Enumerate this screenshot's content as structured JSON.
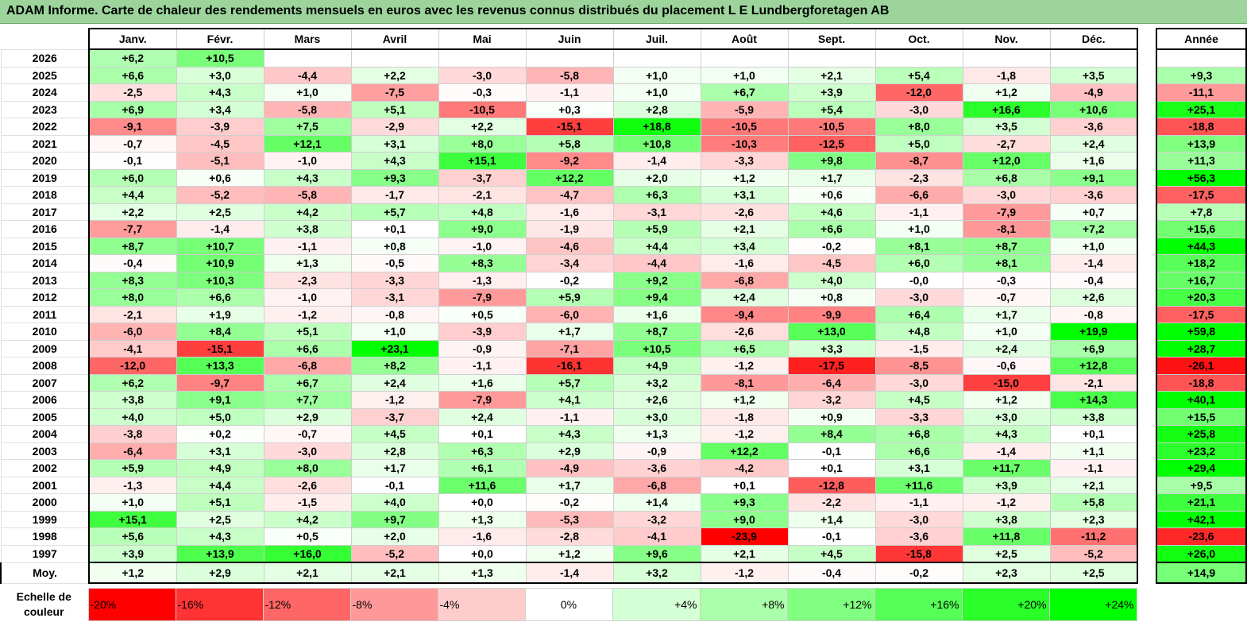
{
  "title": "ADAM Informe. Carte de chaleur des rendements mensuels en euros avec les revenus connus distribués du placement L E Lundbergforetagen AB",
  "months": [
    "Janv.",
    "Févr.",
    "Mars",
    "Avril",
    "Mai",
    "Juin",
    "Juil.",
    "Août",
    "Sept.",
    "Oct.",
    "Nov.",
    "Déc."
  ],
  "year_header": "Année",
  "avg_label": "Moy.",
  "rows": [
    {
      "year": "2026",
      "months": [
        "+6,2",
        "+10,5",
        "",
        "",
        "",
        "",
        "",
        "",
        "",
        "",
        "",
        ""
      ],
      "annual": ""
    },
    {
      "year": "2025",
      "months": [
        "+6,6",
        "+3,0",
        "-4,4",
        "+2,2",
        "-3,0",
        "-5,8",
        "+1,0",
        "+1,0",
        "+2,1",
        "+5,4",
        "-1,8",
        "+3,5"
      ],
      "annual": "+9,3"
    },
    {
      "year": "2024",
      "months": [
        "-2,5",
        "+4,3",
        "+1,0",
        "-7,5",
        "-0,3",
        "-1,1",
        "+1,0",
        "+6,7",
        "+3,9",
        "-12,0",
        "+1,2",
        "-4,9"
      ],
      "annual": "-11,1"
    },
    {
      "year": "2023",
      "months": [
        "+6,9",
        "+3,4",
        "-5,8",
        "+5,1",
        "-10,5",
        "+0,3",
        "+2,8",
        "-5,9",
        "+5,4",
        "-3,0",
        "+16,6",
        "+10,6"
      ],
      "annual": "+25,1"
    },
    {
      "year": "2022",
      "months": [
        "-9,1",
        "-3,9",
        "+7,5",
        "-2,9",
        "+2,2",
        "-15,1",
        "+18,8",
        "-10,5",
        "-10,5",
        "+8,0",
        "+3,5",
        "-3,6"
      ],
      "annual": "-18,8"
    },
    {
      "year": "2021",
      "months": [
        "-0,7",
        "-4,5",
        "+12,1",
        "+3,1",
        "+8,0",
        "+5,8",
        "+10,8",
        "-10,3",
        "-12,5",
        "+5,0",
        "-2,7",
        "+2,4"
      ],
      "annual": "+13,9"
    },
    {
      "year": "2020",
      "months": [
        "-0,1",
        "-5,1",
        "-1,0",
        "+4,3",
        "+15,1",
        "-9,2",
        "-1,4",
        "-3,3",
        "+9,8",
        "-8,7",
        "+12,0",
        "+1,6"
      ],
      "annual": "+11,3"
    },
    {
      "year": "2019",
      "months": [
        "+6,0",
        "+0,6",
        "+4,3",
        "+9,3",
        "-3,7",
        "+12,2",
        "+2,0",
        "+1,2",
        "+1,7",
        "-2,3",
        "+6,8",
        "+9,1"
      ],
      "annual": "+56,3"
    },
    {
      "year": "2018",
      "months": [
        "+4,4",
        "-5,2",
        "-5,8",
        "-1,7",
        "-2,1",
        "-4,7",
        "+6,3",
        "+3,1",
        "+0,6",
        "-6,6",
        "-3,0",
        "-3,6"
      ],
      "annual": "-17,5"
    },
    {
      "year": "2017",
      "months": [
        "+2,2",
        "+2,5",
        "+4,2",
        "+5,7",
        "+4,8",
        "-1,6",
        "-3,1",
        "-2,6",
        "+4,6",
        "-1,1",
        "-7,9",
        "+0,7"
      ],
      "annual": "+7,8"
    },
    {
      "year": "2016",
      "months": [
        "-7,7",
        "-1,4",
        "+3,8",
        "+0,1",
        "+9,0",
        "-1,9",
        "+5,9",
        "+2,1",
        "+6,6",
        "+1,0",
        "-8,1",
        "+7,2"
      ],
      "annual": "+15,6"
    },
    {
      "year": "2015",
      "months": [
        "+8,7",
        "+10,7",
        "-1,1",
        "+0,8",
        "-1,0",
        "-4,6",
        "+4,4",
        "+3,4",
        "-0,2",
        "+8,1",
        "+8,7",
        "+1,0"
      ],
      "annual": "+44,3"
    },
    {
      "year": "2014",
      "months": [
        "-0,4",
        "+10,9",
        "+1,3",
        "-0,5",
        "+8,3",
        "-3,4",
        "-4,4",
        "-1,6",
        "-4,5",
        "+6,0",
        "+8,1",
        "-1,4"
      ],
      "annual": "+18,2"
    },
    {
      "year": "2013",
      "months": [
        "+8,3",
        "+10,3",
        "-2,3",
        "-3,3",
        "-1,3",
        "-0,2",
        "+9,2",
        "-6,8",
        "+4,0",
        "-0,0",
        "-0,3",
        "-0,4"
      ],
      "annual": "+16,7"
    },
    {
      "year": "2012",
      "months": [
        "+8,0",
        "+6,6",
        "-1,0",
        "-3,1",
        "-7,9",
        "+5,9",
        "+9,4",
        "+2,4",
        "+0,8",
        "-3,0",
        "-0,7",
        "+2,6"
      ],
      "annual": "+20,3"
    },
    {
      "year": "2011",
      "months": [
        "-2,1",
        "+1,9",
        "-1,2",
        "-0,8",
        "+0,5",
        "-6,0",
        "+1,6",
        "-9,4",
        "-9,9",
        "+6,4",
        "+1,7",
        "-0,8"
      ],
      "annual": "-17,5"
    },
    {
      "year": "2010",
      "months": [
        "-6,0",
        "+8,4",
        "+5,1",
        "+1,0",
        "-3,9",
        "+1,7",
        "+8,7",
        "-2,6",
        "+13,0",
        "+4,8",
        "+1,0",
        "+19,9"
      ],
      "annual": "+59,8"
    },
    {
      "year": "2009",
      "months": [
        "-4,1",
        "-15,1",
        "+6,6",
        "+23,1",
        "-0,9",
        "-7,1",
        "+10,5",
        "+6,5",
        "+3,3",
        "-1,5",
        "+2,4",
        "+6,9"
      ],
      "annual": "+28,7"
    },
    {
      "year": "2008",
      "months": [
        "-12,0",
        "+13,3",
        "-6,8",
        "+8,2",
        "-1,1",
        "-16,1",
        "+4,9",
        "-1,2",
        "-17,5",
        "-8,5",
        "-0,6",
        "+12,8"
      ],
      "annual": "-26,1"
    },
    {
      "year": "2007",
      "months": [
        "+6,2",
        "-9,7",
        "+6,7",
        "+2,4",
        "+1,6",
        "+5,7",
        "+3,2",
        "-8,1",
        "-6,4",
        "-3,0",
        "-15,0",
        "-2,1"
      ],
      "annual": "-18,8"
    },
    {
      "year": "2006",
      "months": [
        "+3,8",
        "+9,1",
        "+7,7",
        "-1,2",
        "-7,9",
        "+4,1",
        "+2,6",
        "+1,2",
        "-3,2",
        "+4,5",
        "+1,2",
        "+14,3"
      ],
      "annual": "+40,1"
    },
    {
      "year": "2005",
      "months": [
        "+4,0",
        "+5,0",
        "+2,9",
        "-3,7",
        "+2,4",
        "-1,1",
        "+3,0",
        "-1,8",
        "+0,9",
        "-3,3",
        "+3,0",
        "+3,8"
      ],
      "annual": "+15,5"
    },
    {
      "year": "2004",
      "months": [
        "-3,8",
        "+0,2",
        "-0,7",
        "+4,5",
        "+0,1",
        "+4,3",
        "+1,3",
        "-1,2",
        "+8,4",
        "+6,8",
        "+4,3",
        "+0,1"
      ],
      "annual": "+25,8"
    },
    {
      "year": "2003",
      "months": [
        "-6,4",
        "+3,1",
        "-3,0",
        "+2,8",
        "+6,3",
        "+2,9",
        "-0,9",
        "+12,2",
        "-0,1",
        "+6,6",
        "-1,4",
        "+1,1"
      ],
      "annual": "+23,2"
    },
    {
      "year": "2002",
      "months": [
        "+5,9",
        "+4,9",
        "+8,0",
        "+1,7",
        "+6,1",
        "-4,9",
        "-3,6",
        "-4,2",
        "+0,1",
        "+3,1",
        "+11,7",
        "-1,1"
      ],
      "annual": "+29,4"
    },
    {
      "year": "2001",
      "months": [
        "-1,3",
        "+4,4",
        "-2,6",
        "-0,1",
        "+11,6",
        "+1,7",
        "-6,8",
        "+0,1",
        "-12,8",
        "+11,6",
        "+3,9",
        "+2,1"
      ],
      "annual": "+9,5"
    },
    {
      "year": "2000",
      "months": [
        "+1,0",
        "+5,1",
        "-1,5",
        "+4,0",
        "+0,0",
        "-0,2",
        "+1,4",
        "+9,3",
        "-2,2",
        "-1,1",
        "-1,2",
        "+5,8"
      ],
      "annual": "+21,1"
    },
    {
      "year": "1999",
      "months": [
        "+15,1",
        "+2,5",
        "+4,2",
        "+9,7",
        "+1,3",
        "-5,3",
        "-3,2",
        "+9,0",
        "+1,4",
        "-3,0",
        "+3,8",
        "+2,3"
      ],
      "annual": "+42,1"
    },
    {
      "year": "1998",
      "months": [
        "+5,6",
        "+4,3",
        "+0,5",
        "+2,0",
        "-1,6",
        "-2,8",
        "-4,1",
        "-23,9",
        "-0,1",
        "-3,6",
        "+11,8",
        "-11,2"
      ],
      "annual": "-23,6"
    },
    {
      "year": "1997",
      "months": [
        "+3,9",
        "+13,9",
        "+16,0",
        "-5,2",
        "+0,0",
        "+1,2",
        "+9,6",
        "+2,1",
        "+4,5",
        "-15,8",
        "+2,5",
        "-5,2"
      ],
      "annual": "+26,0"
    }
  ],
  "averages": {
    "months": [
      "+1,2",
      "+2,9",
      "+2,1",
      "+2,1",
      "+1,3",
      "-1,4",
      "+3,2",
      "-1,2",
      "-0,4",
      "-0,2",
      "+2,3",
      "+2,5"
    ],
    "annual": "+14,9"
  },
  "scale": {
    "label_line1": "Echelle de",
    "label_line2": "couleur",
    "steps": [
      "-20%",
      "-16%",
      "-12%",
      "-8%",
      "-4%",
      "0%",
      "+4%",
      "+8%",
      "+12%",
      "+16%",
      "+20%",
      "+24%"
    ]
  },
  "colors": {
    "negative": "#ff0000",
    "positive": "#00ff00",
    "neutral": "#ffffff",
    "title_bg": "#9cd49c"
  },
  "chart_data": {
    "type": "heatmap",
    "title": "ADAM Informe. Carte de chaleur des rendements mensuels en euros avec les revenus connus distribués du placement L E Lundbergforetagen AB",
    "x_categories": [
      "Janv.",
      "Févr.",
      "Mars",
      "Avril",
      "Mai",
      "Juin",
      "Juil.",
      "Août",
      "Sept.",
      "Oct.",
      "Nov.",
      "Déc.",
      "Année"
    ],
    "y_categories": [
      "2026",
      "2025",
      "2024",
      "2023",
      "2022",
      "2021",
      "2020",
      "2019",
      "2018",
      "2017",
      "2016",
      "2015",
      "2014",
      "2013",
      "2012",
      "2011",
      "2010",
      "2009",
      "2008",
      "2007",
      "2006",
      "2005",
      "2004",
      "2003",
      "2002",
      "2001",
      "2000",
      "1999",
      "1998",
      "1997",
      "Moy."
    ],
    "values": [
      [
        6.2,
        10.5,
        null,
        null,
        null,
        null,
        null,
        null,
        null,
        null,
        null,
        null,
        null
      ],
      [
        6.6,
        3.0,
        -4.4,
        2.2,
        -3.0,
        -5.8,
        1.0,
        1.0,
        2.1,
        5.4,
        -1.8,
        3.5,
        9.3
      ],
      [
        -2.5,
        4.3,
        1.0,
        -7.5,
        -0.3,
        -1.1,
        1.0,
        6.7,
        3.9,
        -12.0,
        1.2,
        -4.9,
        -11.1
      ],
      [
        6.9,
        3.4,
        -5.8,
        5.1,
        -10.5,
        0.3,
        2.8,
        -5.9,
        5.4,
        -3.0,
        16.6,
        10.6,
        25.1
      ],
      [
        -9.1,
        -3.9,
        7.5,
        -2.9,
        2.2,
        -15.1,
        18.8,
        -10.5,
        -10.5,
        8.0,
        3.5,
        -3.6,
        -18.8
      ],
      [
        -0.7,
        -4.5,
        12.1,
        3.1,
        8.0,
        5.8,
        10.8,
        -10.3,
        -12.5,
        5.0,
        -2.7,
        2.4,
        13.9
      ],
      [
        -0.1,
        -5.1,
        -1.0,
        4.3,
        15.1,
        -9.2,
        -1.4,
        -3.3,
        9.8,
        -8.7,
        12.0,
        1.6,
        11.3
      ],
      [
        6.0,
        0.6,
        4.3,
        9.3,
        -3.7,
        12.2,
        2.0,
        1.2,
        1.7,
        -2.3,
        6.8,
        9.1,
        56.3
      ],
      [
        4.4,
        -5.2,
        -5.8,
        -1.7,
        -2.1,
        -4.7,
        6.3,
        3.1,
        0.6,
        -6.6,
        -3.0,
        -3.6,
        -17.5
      ],
      [
        2.2,
        2.5,
        4.2,
        5.7,
        4.8,
        -1.6,
        -3.1,
        -2.6,
        4.6,
        -1.1,
        -7.9,
        0.7,
        7.8
      ],
      [
        -7.7,
        -1.4,
        3.8,
        0.1,
        9.0,
        -1.9,
        5.9,
        2.1,
        6.6,
        1.0,
        -8.1,
        7.2,
        15.6
      ],
      [
        8.7,
        10.7,
        -1.1,
        0.8,
        -1.0,
        -4.6,
        4.4,
        3.4,
        -0.2,
        8.1,
        8.7,
        1.0,
        44.3
      ],
      [
        -0.4,
        10.9,
        1.3,
        -0.5,
        8.3,
        -3.4,
        -4.4,
        -1.6,
        -4.5,
        6.0,
        8.1,
        -1.4,
        18.2
      ],
      [
        8.3,
        10.3,
        -2.3,
        -3.3,
        -1.3,
        -0.2,
        9.2,
        -6.8,
        4.0,
        -0.0,
        -0.3,
        -0.4,
        16.7
      ],
      [
        8.0,
        6.6,
        -1.0,
        -3.1,
        -7.9,
        5.9,
        9.4,
        2.4,
        0.8,
        -3.0,
        -0.7,
        2.6,
        20.3
      ],
      [
        -2.1,
        1.9,
        -1.2,
        -0.8,
        0.5,
        -6.0,
        1.6,
        -9.4,
        -9.9,
        6.4,
        1.7,
        -0.8,
        -17.5
      ],
      [
        -6.0,
        8.4,
        5.1,
        1.0,
        -3.9,
        1.7,
        8.7,
        -2.6,
        13.0,
        4.8,
        1.0,
        19.9,
        59.8
      ],
      [
        -4.1,
        -15.1,
        6.6,
        23.1,
        -0.9,
        -7.1,
        10.5,
        6.5,
        3.3,
        -1.5,
        2.4,
        6.9,
        28.7
      ],
      [
        -12.0,
        13.3,
        -6.8,
        8.2,
        -1.1,
        -16.1,
        4.9,
        -1.2,
        -17.5,
        -8.5,
        -0.6,
        12.8,
        -26.1
      ],
      [
        6.2,
        -9.7,
        6.7,
        2.4,
        1.6,
        5.7,
        3.2,
        -8.1,
        -6.4,
        -3.0,
        -15.0,
        -2.1,
        -18.8
      ],
      [
        3.8,
        9.1,
        7.7,
        -1.2,
        -7.9,
        4.1,
        2.6,
        1.2,
        -3.2,
        4.5,
        1.2,
        14.3,
        40.1
      ],
      [
        4.0,
        5.0,
        2.9,
        -3.7,
        2.4,
        -1.1,
        3.0,
        -1.8,
        0.9,
        -3.3,
        3.0,
        3.8,
        15.5
      ],
      [
        -3.8,
        0.2,
        -0.7,
        4.5,
        0.1,
        4.3,
        1.3,
        -1.2,
        8.4,
        6.8,
        4.3,
        0.1,
        25.8
      ],
      [
        -6.4,
        3.1,
        -3.0,
        2.8,
        6.3,
        2.9,
        -0.9,
        12.2,
        -0.1,
        6.6,
        -1.4,
        1.1,
        23.2
      ],
      [
        5.9,
        4.9,
        8.0,
        1.7,
        6.1,
        -4.9,
        -3.6,
        -4.2,
        0.1,
        3.1,
        11.7,
        -1.1,
        29.4
      ],
      [
        -1.3,
        4.4,
        -2.6,
        -0.1,
        11.6,
        1.7,
        -6.8,
        0.1,
        -12.8,
        11.6,
        3.9,
        2.1,
        9.5
      ],
      [
        1.0,
        5.1,
        -1.5,
        4.0,
        0.0,
        -0.2,
        1.4,
        9.3,
        -2.2,
        -1.1,
        -1.2,
        5.8,
        21.1
      ],
      [
        15.1,
        2.5,
        4.2,
        9.7,
        1.3,
        -5.3,
        -3.2,
        9.0,
        1.4,
        -3.0,
        3.8,
        2.3,
        42.1
      ],
      [
        5.6,
        4.3,
        0.5,
        2.0,
        -1.6,
        -2.8,
        -4.1,
        -23.9,
        -0.1,
        -3.6,
        11.8,
        -11.2,
        -23.6
      ],
      [
        3.9,
        13.9,
        16.0,
        -5.2,
        0.0,
        1.2,
        9.6,
        2.1,
        4.5,
        -15.8,
        2.5,
        -5.2,
        26.0
      ],
      [
        1.2,
        2.9,
        2.1,
        2.1,
        1.3,
        -1.4,
        3.2,
        -1.2,
        -0.4,
        -0.2,
        2.3,
        2.5,
        14.9
      ]
    ],
    "unit": "%",
    "color_scale": {
      "min": -20,
      "max": 24,
      "stops": [
        -20,
        -16,
        -12,
        -8,
        -4,
        0,
        4,
        8,
        12,
        16,
        20,
        24
      ]
    }
  }
}
